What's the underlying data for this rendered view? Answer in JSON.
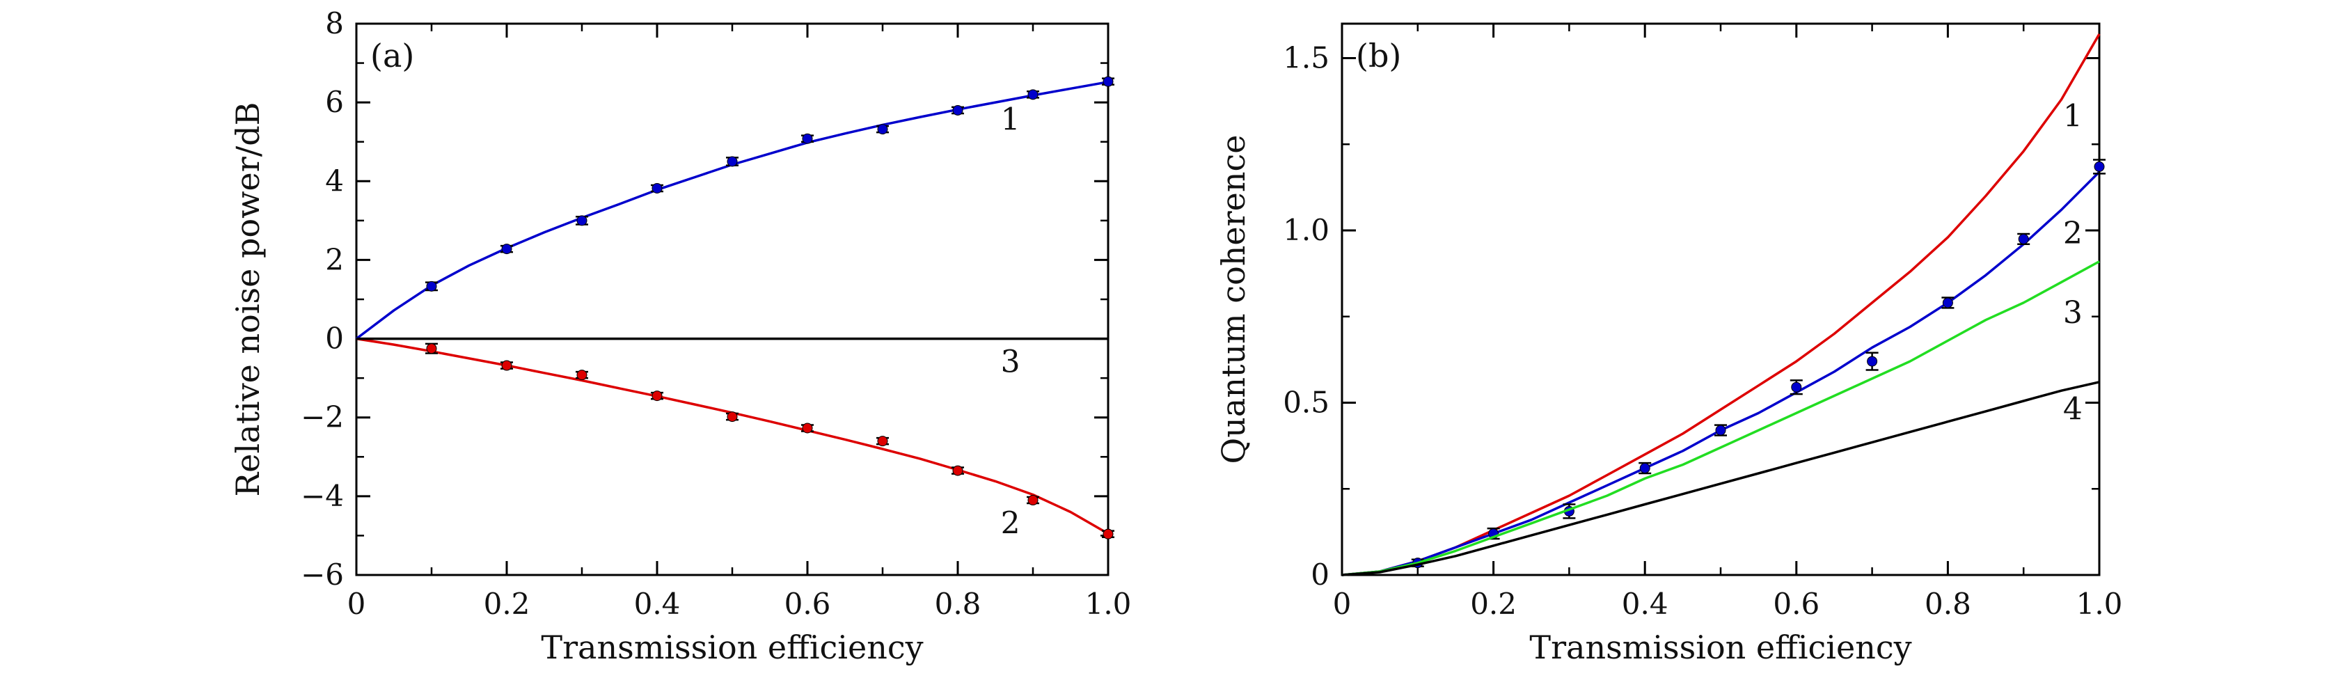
{
  "chart_data": [
    {
      "type": "line",
      "panel_label": "(a)",
      "xlabel": "Transmission efficiency",
      "ylabel": "Relative noise power/dB",
      "xlim": [
        0,
        1.0
      ],
      "ylim": [
        -6,
        8
      ],
      "x_ticks": [
        0,
        0.2,
        0.4,
        0.6,
        0.8,
        1.0
      ],
      "x_tick_labels": [
        "0",
        "0.2",
        "0.4",
        "0.6",
        "0.8",
        "1.0"
      ],
      "y_ticks": [
        -6,
        -4,
        -2,
        0,
        2,
        4,
        6,
        8
      ],
      "y_tick_labels": [
        "−6",
        "−4",
        "−2",
        "0",
        "2",
        "4",
        "6",
        "8"
      ],
      "grid": false,
      "series": [
        {
          "name": "1",
          "color": "#0000cc",
          "curve_x": [
            0,
            0.05,
            0.1,
            0.15,
            0.2,
            0.25,
            0.3,
            0.35,
            0.4,
            0.45,
            0.5,
            0.55,
            0.6,
            0.65,
            0.7,
            0.75,
            0.8,
            0.85,
            0.9,
            0.95,
            1.0
          ],
          "curve_y": [
            0,
            0.72,
            1.35,
            1.86,
            2.3,
            2.7,
            3.07,
            3.42,
            3.78,
            4.1,
            4.42,
            4.7,
            4.98,
            5.21,
            5.43,
            5.63,
            5.82,
            6.0,
            6.18,
            6.35,
            6.52
          ],
          "points_x": [
            0.1,
            0.2,
            0.3,
            0.4,
            0.5,
            0.6,
            0.7,
            0.8,
            0.9,
            1.0
          ],
          "points_y": [
            1.33,
            2.28,
            3.0,
            3.82,
            4.5,
            5.08,
            5.32,
            5.8,
            6.2,
            6.53
          ],
          "errors": [
            0.1,
            0.08,
            0.1,
            0.08,
            0.1,
            0.08,
            0.08,
            0.08,
            0.08,
            0.08
          ],
          "label_position": {
            "x": 0.87,
            "y": 5.55
          }
        },
        {
          "name": "2",
          "color": "#dd0000",
          "curve_x": [
            0,
            0.05,
            0.1,
            0.15,
            0.2,
            0.25,
            0.3,
            0.35,
            0.4,
            0.45,
            0.5,
            0.55,
            0.6,
            0.65,
            0.7,
            0.75,
            0.8,
            0.85,
            0.9,
            0.95,
            1.0
          ],
          "curve_y": [
            0,
            -0.15,
            -0.32,
            -0.5,
            -0.68,
            -0.87,
            -1.06,
            -1.26,
            -1.46,
            -1.67,
            -1.88,
            -2.1,
            -2.33,
            -2.56,
            -2.8,
            -3.05,
            -3.33,
            -3.62,
            -3.96,
            -4.4,
            -4.95
          ],
          "points_x": [
            0.1,
            0.2,
            0.3,
            0.4,
            0.5,
            0.6,
            0.7,
            0.8,
            0.9,
            1.0
          ],
          "points_y": [
            -0.25,
            -0.68,
            -0.92,
            -1.45,
            -1.98,
            -2.27,
            -2.6,
            -3.35,
            -4.1,
            -4.96
          ],
          "errors": [
            0.12,
            0.08,
            0.08,
            0.08,
            0.08,
            0.08,
            0.08,
            0.08,
            0.08,
            0.08
          ],
          "label_position": {
            "x": 0.87,
            "y": -4.7
          }
        },
        {
          "name": "3",
          "color": "#000000",
          "curve_x": [
            0,
            1.0
          ],
          "curve_y": [
            0,
            0
          ],
          "label_position": {
            "x": 0.87,
            "y": -0.6
          }
        }
      ]
    },
    {
      "type": "line",
      "panel_label": "(b)",
      "xlabel": "Transmission efficiency",
      "ylabel": "Quantum coherence",
      "xlim": [
        0,
        1.0
      ],
      "ylim": [
        0,
        1.6
      ],
      "x_ticks": [
        0,
        0.2,
        0.4,
        0.6,
        0.8,
        1.0
      ],
      "x_tick_labels": [
        "0",
        "0.2",
        "0.4",
        "0.6",
        "0.8",
        "1.0"
      ],
      "y_ticks": [
        0,
        0.5,
        1.0,
        1.5
      ],
      "y_tick_labels": [
        "0",
        "0.5",
        "1.0",
        "1.5"
      ],
      "grid": false,
      "series": [
        {
          "name": "1",
          "color": "#dd0000",
          "curve_x": [
            0,
            0.05,
            0.1,
            0.15,
            0.2,
            0.25,
            0.3,
            0.35,
            0.4,
            0.45,
            0.5,
            0.55,
            0.6,
            0.65,
            0.7,
            0.75,
            0.8,
            0.85,
            0.9,
            0.95,
            1.0
          ],
          "curve_y": [
            0,
            0.01,
            0.04,
            0.08,
            0.13,
            0.18,
            0.23,
            0.29,
            0.35,
            0.41,
            0.48,
            0.55,
            0.62,
            0.7,
            0.79,
            0.88,
            0.98,
            1.1,
            1.23,
            1.38,
            1.57
          ],
          "label_position": {
            "x": 0.965,
            "y": 1.33
          }
        },
        {
          "name": "2",
          "color": "#0000cc",
          "curve_x": [
            0,
            0.05,
            0.1,
            0.15,
            0.2,
            0.25,
            0.3,
            0.35,
            0.4,
            0.45,
            0.5,
            0.55,
            0.6,
            0.65,
            0.7,
            0.75,
            0.8,
            0.85,
            0.9,
            0.95,
            1.0
          ],
          "curve_y": [
            0,
            0.01,
            0.04,
            0.08,
            0.12,
            0.16,
            0.21,
            0.26,
            0.31,
            0.36,
            0.42,
            0.47,
            0.53,
            0.59,
            0.66,
            0.72,
            0.79,
            0.87,
            0.96,
            1.06,
            1.17
          ],
          "points_x": [
            0.1,
            0.2,
            0.3,
            0.4,
            0.5,
            0.6,
            0.7,
            0.8,
            0.9,
            1.0
          ],
          "points_y": [
            0.035,
            0.12,
            0.185,
            0.31,
            0.42,
            0.545,
            0.62,
            0.79,
            0.975,
            1.185
          ],
          "errors": [
            0.01,
            0.015,
            0.02,
            0.015,
            0.015,
            0.02,
            0.025,
            0.015,
            0.015,
            0.02
          ],
          "label_position": {
            "x": 0.965,
            "y": 0.99
          }
        },
        {
          "name": "3",
          "color": "#22dd22",
          "curve_x": [
            0,
            0.05,
            0.1,
            0.15,
            0.2,
            0.25,
            0.3,
            0.35,
            0.4,
            0.45,
            0.5,
            0.55,
            0.6,
            0.65,
            0.7,
            0.75,
            0.8,
            0.85,
            0.9,
            0.95,
            1.0
          ],
          "curve_y": [
            0,
            0.01,
            0.035,
            0.07,
            0.11,
            0.15,
            0.19,
            0.23,
            0.28,
            0.32,
            0.37,
            0.42,
            0.47,
            0.52,
            0.57,
            0.62,
            0.68,
            0.74,
            0.79,
            0.85,
            0.91
          ],
          "label_position": {
            "x": 0.965,
            "y": 0.76
          }
        },
        {
          "name": "4",
          "color": "#000000",
          "curve_x": [
            0,
            0.05,
            0.1,
            0.15,
            0.2,
            0.25,
            0.3,
            0.35,
            0.4,
            0.45,
            0.5,
            0.55,
            0.6,
            0.65,
            0.7,
            0.75,
            0.8,
            0.85,
            0.9,
            0.95,
            1.0
          ],
          "curve_y": [
            0,
            0.008,
            0.03,
            0.055,
            0.085,
            0.115,
            0.145,
            0.175,
            0.205,
            0.235,
            0.265,
            0.295,
            0.325,
            0.355,
            0.385,
            0.415,
            0.445,
            0.475,
            0.505,
            0.535,
            0.56
          ],
          "label_position": {
            "x": 0.965,
            "y": 0.48
          }
        }
      ]
    }
  ]
}
